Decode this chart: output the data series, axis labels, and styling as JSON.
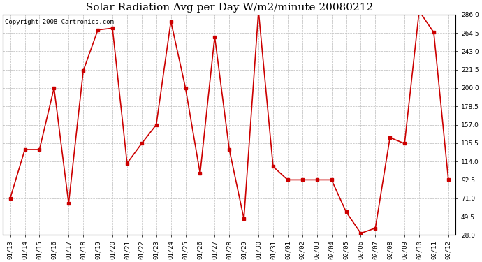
{
  "title": "Solar Radiation Avg per Day W/m2/minute 20080212",
  "copyright": "Copyright 2008 Cartronics.com",
  "dates": [
    "01/13",
    "01/14",
    "01/15",
    "01/16",
    "01/17",
    "01/18",
    "01/19",
    "01/20",
    "01/21",
    "01/22",
    "01/23",
    "01/24",
    "01/25",
    "01/26",
    "01/27",
    "01/28",
    "01/29",
    "01/30",
    "01/31",
    "02/01",
    "02/02",
    "02/03",
    "02/04",
    "02/05",
    "02/06",
    "02/07",
    "02/08",
    "02/09",
    "02/10",
    "02/11",
    "02/12"
  ],
  "values": [
    71.0,
    128.0,
    128.0,
    200.0,
    65.0,
    220.0,
    268.0,
    270.0,
    112.0,
    135.0,
    157.0,
    278.0,
    200.0,
    100.0,
    260.0,
    128.0,
    47.0,
    290.0,
    108.0,
    92.5,
    92.5,
    92.5,
    92.5,
    55.0,
    30.0,
    36.0,
    142.0,
    135.0,
    290.0,
    265.0,
    92.5
  ],
  "line_color": "#cc0000",
  "marker": "s",
  "marker_size": 2.5,
  "bg_color": "#ffffff",
  "plot_bg_color": "#ffffff",
  "grid_color": "#bbbbbb",
  "yticks": [
    28.0,
    49.5,
    71.0,
    92.5,
    114.0,
    135.5,
    157.0,
    178.5,
    200.0,
    221.5,
    243.0,
    264.5,
    286.0
  ],
  "ymin": 28.0,
  "ymax": 286.0,
  "title_fontsize": 11,
  "copyright_fontsize": 6.5,
  "tick_fontsize": 6.5,
  "fig_width": 6.9,
  "fig_height": 3.75
}
